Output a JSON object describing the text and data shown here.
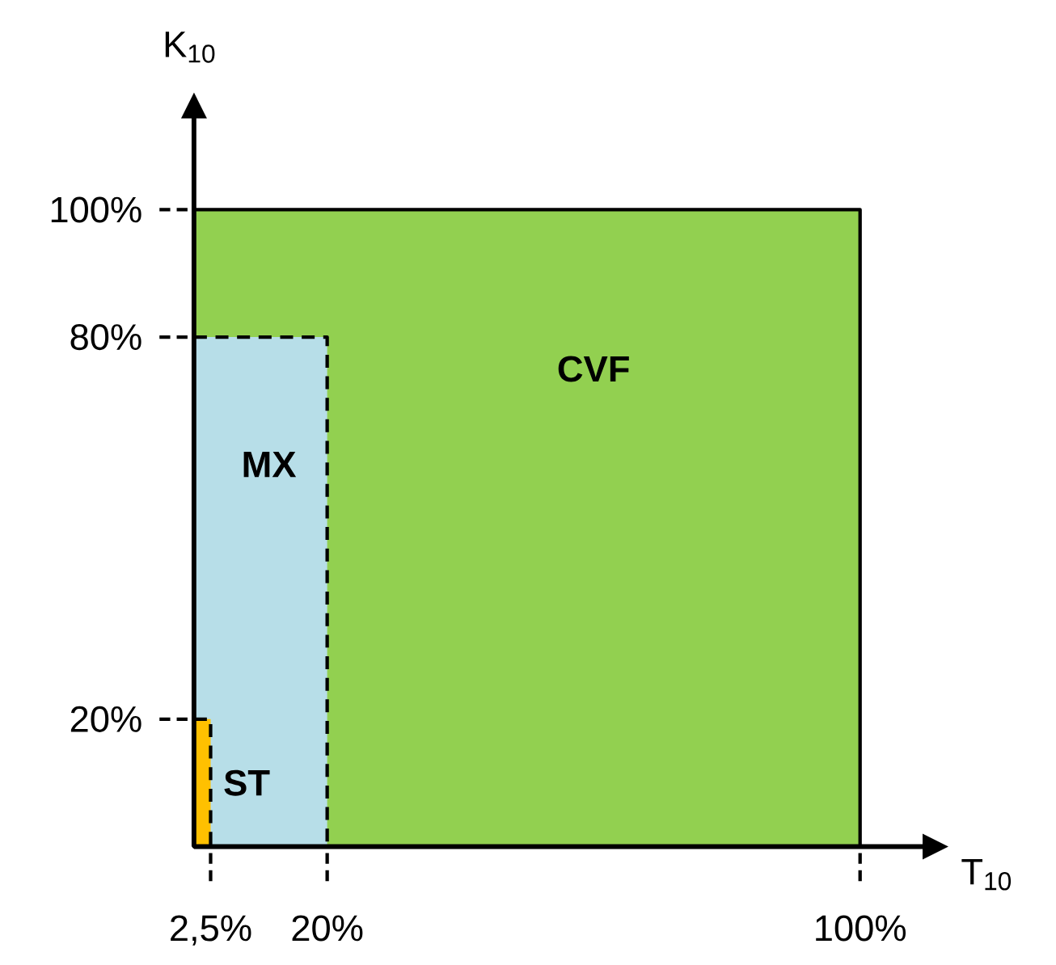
{
  "chart_data": {
    "type": "area",
    "xlabel": "T$_{10}$",
    "ylabel": "K$_{10}$",
    "xlim": [
      0,
      110
    ],
    "ylim": [
      0,
      115
    ],
    "xticks": [
      {
        "value": 2.5,
        "label": "2,5%"
      },
      {
        "value": 20,
        "label": "20%"
      },
      {
        "value": 100,
        "label": "100%"
      }
    ],
    "yticks": [
      {
        "value": 20,
        "label": "20%"
      },
      {
        "value": 80,
        "label": "80%"
      },
      {
        "value": 100,
        "label": "100%"
      }
    ],
    "series": [
      {
        "name": "CVF",
        "color": "#92d050",
        "x": [
          0,
          100
        ],
        "values": [
          100,
          100
        ],
        "line_style": "solid"
      },
      {
        "name": "MX",
        "color": "#b7dee8",
        "x": [
          0,
          20
        ],
        "values": [
          80,
          80
        ],
        "line_style": "dashed"
      },
      {
        "name": "ST",
        "color": "#ffc000",
        "x": [
          0,
          2.5
        ],
        "values": [
          20,
          20
        ],
        "line_style": "dashed"
      }
    ]
  }
}
